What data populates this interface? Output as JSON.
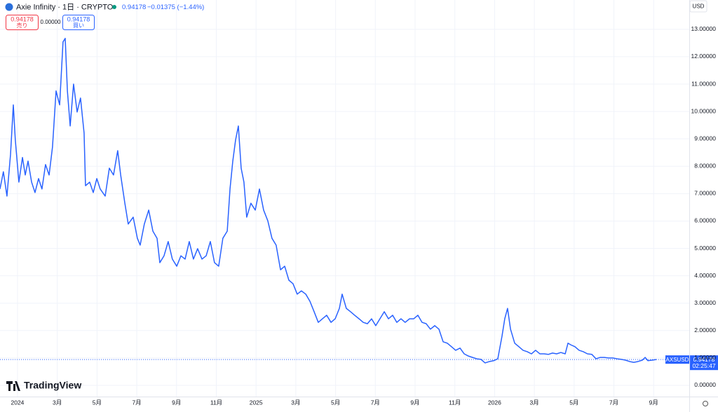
{
  "header": {
    "symbol_title": "Axie Infinity · 1日 · CRYPTO",
    "last": "0.94178",
    "change": "−0.01375 (−1.44%)",
    "sell_price": "0.94178",
    "sell_label": "売り",
    "spread": "0.00000",
    "buy_price": "0.94178",
    "buy_label": "買い",
    "currency": "USD",
    "tag_symbol": "AXSUSD",
    "tag_price": "0.94178",
    "tag_countdown": "02:25:47",
    "logo": "TradingView"
  },
  "chart_data": {
    "type": "line",
    "grid": true,
    "color": "#2962ff",
    "x": [
      -0.88,
      -0.71,
      -0.53,
      -0.35,
      -0.21,
      -0.11,
      0.07,
      0.25,
      0.39,
      0.53,
      0.71,
      0.88,
      1.06,
      1.23,
      1.41,
      1.59,
      1.76,
      1.94,
      2.12,
      2.29,
      2.4,
      2.51,
      2.65,
      2.82,
      3.0,
      3.17,
      3.35,
      3.42,
      3.63,
      3.81,
      3.99,
      4.16,
      4.41,
      4.62,
      4.83,
      5.04,
      5.19,
      5.4,
      5.57,
      5.82,
      6.03,
      6.17,
      6.38,
      6.6,
      6.81,
      7.02,
      7.16,
      7.37,
      7.58,
      7.79,
      8.01,
      8.22,
      8.43,
      8.64,
      8.85,
      9.06,
      9.28,
      9.49,
      9.7,
      9.91,
      10.12,
      10.33,
      10.55,
      10.69,
      10.83,
      10.97,
      11.11,
      11.25,
      11.39,
      11.53,
      11.74,
      11.96,
      12.17,
      12.38,
      12.59,
      12.8,
      13.01,
      13.23,
      13.44,
      13.65,
      13.86,
      14.07,
      14.28,
      14.5,
      14.71,
      14.92,
      15.13,
      15.34,
      15.55,
      15.77,
      15.98,
      16.19,
      16.33,
      16.54,
      16.75,
      16.96,
      17.18,
      17.39,
      17.6,
      17.81,
      18.02,
      18.23,
      18.45,
      18.66,
      18.87,
      19.08,
      19.29,
      19.5,
      19.72,
      19.93,
      20.14,
      20.35,
      20.56,
      20.77,
      20.99,
      21.2,
      21.41,
      21.62,
      21.83,
      22.04,
      22.26,
      22.47,
      22.68,
      22.89,
      23.1,
      23.31,
      23.52,
      23.74,
      23.95,
      24.16,
      24.37,
      24.51,
      24.65,
      24.8,
      25.01,
      25.22,
      25.43,
      25.64,
      25.85,
      26.06,
      26.28,
      26.49,
      26.7,
      26.91,
      27.12,
      27.33,
      27.55,
      27.69,
      27.83,
      28.04,
      28.25,
      28.46,
      28.67,
      28.89,
      29.1,
      29.31,
      29.52,
      29.73,
      29.94,
      30.16,
      30.37,
      30.58,
      30.79,
      31.0,
      31.21,
      31.43,
      31.57,
      31.71,
      31.92,
      32.13
    ],
    "series": [
      {
        "name": "AXSUSD",
        "color": "#2962ff",
        "values": [
          7.17,
          7.8,
          6.91,
          8.44,
          10.24,
          8.96,
          7.42,
          8.32,
          7.68,
          8.19,
          7.42,
          7.04,
          7.55,
          7.17,
          8.06,
          7.68,
          8.7,
          10.75,
          10.24,
          12.54,
          12.67,
          10.75,
          9.47,
          11.0,
          9.98,
          10.49,
          9.21,
          7.29,
          7.42,
          7.04,
          7.55,
          7.17,
          6.91,
          7.93,
          7.68,
          8.57,
          7.68,
          6.65,
          5.89,
          6.14,
          5.37,
          5.12,
          5.89,
          6.4,
          5.63,
          5.37,
          4.48,
          4.73,
          5.25,
          4.61,
          4.35,
          4.73,
          4.61,
          5.25,
          4.61,
          4.99,
          4.61,
          4.73,
          5.25,
          4.48,
          4.35,
          5.37,
          5.63,
          7.17,
          8.19,
          8.96,
          9.47,
          7.93,
          7.42,
          6.14,
          6.65,
          6.4,
          7.17,
          6.4,
          6.01,
          5.37,
          5.12,
          4.22,
          4.35,
          3.84,
          3.71,
          3.33,
          3.45,
          3.33,
          3.07,
          2.69,
          2.3,
          2.43,
          2.56,
          2.3,
          2.43,
          2.81,
          3.33,
          2.81,
          2.69,
          2.56,
          2.43,
          2.3,
          2.25,
          2.43,
          2.18,
          2.43,
          2.69,
          2.43,
          2.56,
          2.3,
          2.43,
          2.3,
          2.43,
          2.43,
          2.56,
          2.3,
          2.25,
          2.05,
          2.18,
          2.05,
          1.59,
          1.54,
          1.41,
          1.28,
          1.36,
          1.15,
          1.07,
          1.02,
          0.97,
          0.95,
          0.82,
          0.87,
          0.9,
          0.97,
          1.79,
          2.43,
          2.81,
          2.05,
          1.54,
          1.41,
          1.28,
          1.23,
          1.15,
          1.28,
          1.15,
          1.15,
          1.13,
          1.18,
          1.15,
          1.2,
          1.15,
          1.54,
          1.48,
          1.41,
          1.28,
          1.23,
          1.15,
          1.13,
          0.97,
          1.02,
          1.02,
          1.0,
          1.0,
          0.97,
          0.95,
          0.92,
          0.87,
          0.84,
          0.87,
          0.92,
          1.02,
          0.9,
          0.92,
          0.94178
        ]
      }
    ],
    "xlim": [
      -0.88,
      33.79
    ],
    "xticks": [
      {
        "value": 0,
        "label": "2024"
      },
      {
        "value": 2,
        "label": "3月"
      },
      {
        "value": 4,
        "label": "5月"
      },
      {
        "value": 6,
        "label": "7月"
      },
      {
        "value": 8,
        "label": "9月"
      },
      {
        "value": 10,
        "label": "11月"
      },
      {
        "value": 12,
        "label": "2025"
      },
      {
        "value": 14,
        "label": "3月"
      },
      {
        "value": 16,
        "label": "5月"
      },
      {
        "value": 18,
        "label": "7月"
      },
      {
        "value": 20,
        "label": "9月"
      },
      {
        "value": 22,
        "label": "11月"
      },
      {
        "value": 24,
        "label": "2026"
      },
      {
        "value": 26,
        "label": "3月"
      },
      {
        "value": 28,
        "label": "5月"
      },
      {
        "value": 30,
        "label": "7月"
      },
      {
        "value": 32,
        "label": "9月"
      }
    ],
    "ylim": [
      -0.41,
      14.07
    ],
    "yticks": [
      {
        "value": 0,
        "label": "0.00000"
      },
      {
        "value": 1,
        "label": "1.00000"
      },
      {
        "value": 2,
        "label": "2.00000"
      },
      {
        "value": 3,
        "label": "3.00000"
      },
      {
        "value": 4,
        "label": "4.00000"
      },
      {
        "value": 5,
        "label": "5.00000"
      },
      {
        "value": 6,
        "label": "6.00000"
      },
      {
        "value": 7,
        "label": "7.00000"
      },
      {
        "value": 8,
        "label": "8.00000"
      },
      {
        "value": 9,
        "label": "9.00000"
      },
      {
        "value": 10,
        "label": "10.00000"
      },
      {
        "value": 11,
        "label": "11.00000"
      },
      {
        "value": 12,
        "label": "12.00000"
      },
      {
        "value": 13,
        "label": "13.00000"
      }
    ]
  }
}
